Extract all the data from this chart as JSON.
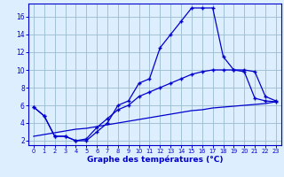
{
  "hours": [
    0,
    1,
    2,
    3,
    4,
    5,
    6,
    7,
    8,
    9,
    10,
    11,
    12,
    13,
    14,
    15,
    16,
    17,
    18,
    19,
    20,
    21,
    22,
    23
  ],
  "temp_main": [
    5.8,
    4.8,
    2.5,
    2.5,
    2.0,
    2.0,
    3.0,
    4.0,
    6.0,
    6.5,
    8.5,
    9.0,
    12.5,
    14.0,
    15.5,
    17.0,
    17.0,
    17.0,
    11.5,
    10.0,
    10.0,
    9.8,
    7.0,
    6.5
  ],
  "temp_line2": [
    5.8,
    4.8,
    2.5,
    2.5,
    2.0,
    2.2,
    3.5,
    4.5,
    5.5,
    6.0,
    7.0,
    7.5,
    8.0,
    8.5,
    9.0,
    9.5,
    9.8,
    10.0,
    10.0,
    10.0,
    9.8,
    6.8,
    6.5,
    6.4
  ],
  "temp_line3": [
    2.5,
    2.7,
    2.9,
    3.1,
    3.3,
    3.4,
    3.6,
    3.8,
    4.0,
    4.2,
    4.4,
    4.6,
    4.8,
    5.0,
    5.2,
    5.4,
    5.5,
    5.7,
    5.8,
    5.9,
    6.0,
    6.1,
    6.2,
    6.4
  ],
  "line_color": "#0000cc",
  "bg_color": "#ddeeff",
  "grid_color": "#99bbcc",
  "xlabel": "Graphe des températures (°C)",
  "yticks": [
    2,
    4,
    6,
    8,
    10,
    12,
    14,
    16
  ],
  "ylim": [
    1.5,
    17.5
  ],
  "xlim": [
    -0.5,
    23.5
  ]
}
